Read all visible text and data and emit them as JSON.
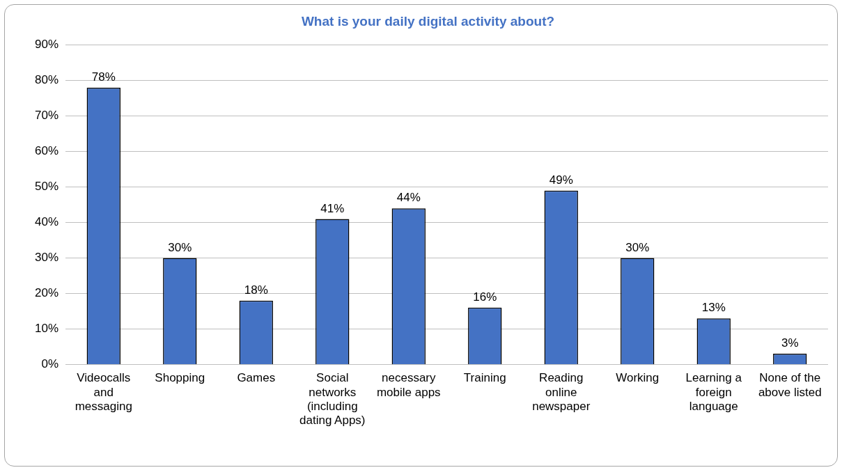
{
  "chart_data": {
    "type": "bar",
    "title": "What is your daily digital activity about?",
    "categories": [
      "Videocalls and messaging",
      "Shopping",
      "Games",
      "Social networks (including dating Apps)",
      "necessary mobile apps",
      "Training",
      "Reading online newspaper",
      "Working",
      "Learning a foreign language",
      "None of the above listed"
    ],
    "values": [
      78,
      30,
      18,
      41,
      44,
      16,
      49,
      30,
      13,
      3
    ],
    "color": "#4472c4",
    "ylim": [
      0,
      90
    ],
    "yticks": [
      {
        "value": 0,
        "label": "0%"
      },
      {
        "value": 10,
        "label": "10%"
      },
      {
        "value": 20,
        "label": "20%"
      },
      {
        "value": 30,
        "label": "30%"
      },
      {
        "value": 40,
        "label": "40%"
      },
      {
        "value": 50,
        "label": "50%"
      },
      {
        "value": 60,
        "label": "60%"
      },
      {
        "value": 70,
        "label": "70%"
      },
      {
        "value": 80,
        "label": "80%"
      },
      {
        "value": 90,
        "label": "90%"
      }
    ],
    "value_labels": [
      "78%",
      "30%",
      "18%",
      "41%",
      "44%",
      "16%",
      "49%",
      "30%",
      "13%",
      "3%"
    ],
    "grid": "y"
  }
}
